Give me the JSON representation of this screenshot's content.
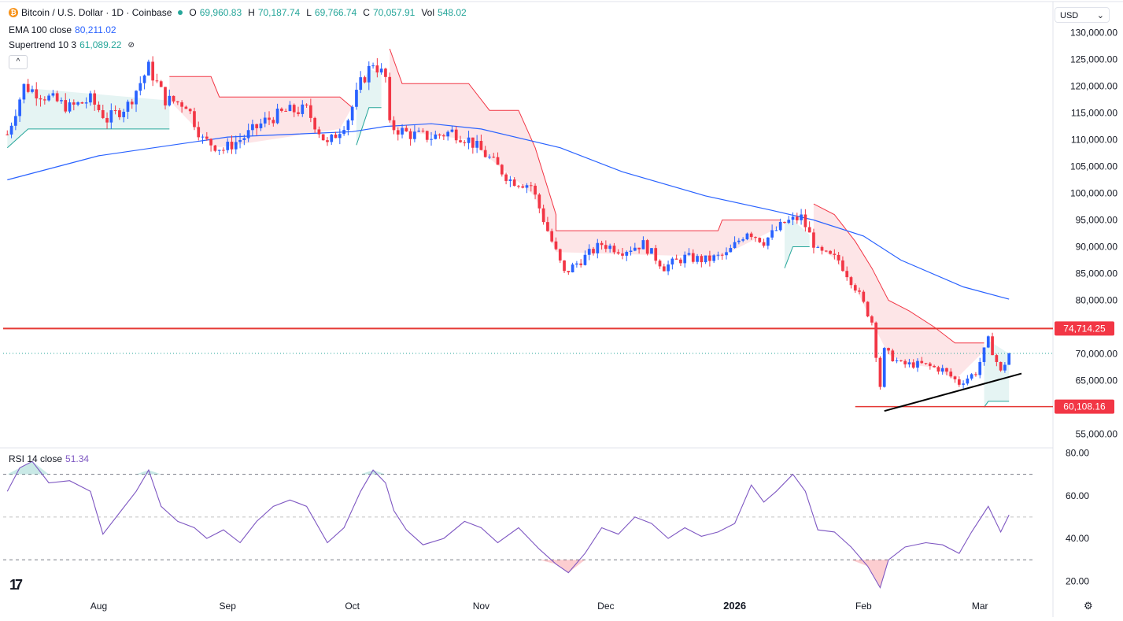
{
  "header": {
    "symbol": "Bitcoin / U.S. Dollar · 1D · Coinbase",
    "coin_glyph": "₿",
    "open_label": "O",
    "open": "69,960.83",
    "high_label": "H",
    "high": "70,187.74",
    "low_label": "L",
    "low": "69,766.74",
    "close_label": "C",
    "close": "70,057.91",
    "vol_label": "Vol",
    "vol": "548.02",
    "collapse_glyph": "^"
  },
  "indicators": {
    "ema_label": "EMA 100 close",
    "ema_value": "80,211.02",
    "supertrend_label": "Supertrend 10 3",
    "supertrend_value": "61,089.22",
    "eye_glyph": "⊘",
    "rsi_label": "RSI 14 close",
    "rsi_value": "51.34"
  },
  "currency": {
    "label": "USD",
    "caret": "⌄"
  },
  "logo_text": "17",
  "settings_icon": "gear-icon",
  "colors": {
    "up": "#2962ff",
    "down": "#f23645",
    "ema": "#2962ff",
    "supertrend_up": "#26a69a",
    "supertrend_down": "#f23645",
    "rsi": "#7e57c2",
    "hline": "#e53935",
    "trendline": "#000000"
  },
  "chart_data": [
    {
      "type": "candlestick",
      "title": "Bitcoin / U.S. Dollar · 1D · Coinbase",
      "ylim": [
        53000,
        132000
      ],
      "y_ticks": [
        "130,000.00",
        "125,000.00",
        "120,000.00",
        "115,000.00",
        "110,000.00",
        "105,000.00",
        "100,000.00",
        "95,000.00",
        "90,000.00",
        "85,000.00",
        "80,000.00",
        "70,000.00",
        "65,000.00",
        "55,000.00"
      ],
      "x_ticks": [
        {
          "label": "Aug",
          "date": "2025-08-01"
        },
        {
          "label": "Sep",
          "date": "2025-09-01"
        },
        {
          "label": "Oct",
          "date": "2025-10-01"
        },
        {
          "label": "Nov",
          "date": "2025-11-01"
        },
        {
          "label": "Dec",
          "date": "2025-12-01"
        },
        {
          "label": "2026",
          "date": "2026-01-01"
        },
        {
          "label": "Feb",
          "date": "2026-02-01"
        },
        {
          "label": "Mar",
          "date": "2026-03-01"
        }
      ],
      "date_range": [
        "2025-07-10",
        "2026-03-08"
      ],
      "last_price": 70057.91,
      "horizontal_levels": [
        {
          "value": 74714.25,
          "label": "74,714.25"
        },
        {
          "value": 60108.16,
          "label": "60,108.16"
        }
      ],
      "trendline": {
        "from": {
          "date": "2026-02-06",
          "value": 59300
        },
        "to": {
          "date": "2026-03-11",
          "value": 66300
        }
      },
      "close_path": [
        [
          "2025-07-10",
          111000
        ],
        [
          "2025-07-14",
          120000
        ],
        [
          "2025-07-20",
          117800
        ],
        [
          "2025-07-25",
          116000
        ],
        [
          "2025-07-30",
          117500
        ],
        [
          "2025-08-03",
          113800
        ],
        [
          "2025-08-08",
          116500
        ],
        [
          "2025-08-13",
          123500
        ],
        [
          "2025-08-17",
          117500
        ],
        [
          "2025-08-22",
          116700
        ],
        [
          "2025-08-26",
          110000
        ],
        [
          "2025-08-31",
          108200
        ],
        [
          "2025-09-05",
          110500
        ],
        [
          "2025-09-10",
          113500
        ],
        [
          "2025-09-15",
          115300
        ],
        [
          "2025-09-20",
          115600
        ],
        [
          "2025-09-25",
          109000
        ],
        [
          "2025-09-30",
          114000
        ],
        [
          "2025-10-03",
          120500
        ],
        [
          "2025-10-06",
          124500
        ],
        [
          "2025-10-09",
          121500
        ],
        [
          "2025-10-10",
          112500
        ],
        [
          "2025-10-15",
          111000
        ],
        [
          "2025-10-20",
          110500
        ],
        [
          "2025-10-25",
          111500
        ],
        [
          "2025-10-29",
          110000
        ],
        [
          "2025-11-03",
          106500
        ],
        [
          "2025-11-08",
          102500
        ],
        [
          "2025-11-13",
          101500
        ],
        [
          "2025-11-17",
          93000
        ],
        [
          "2025-11-21",
          85000
        ],
        [
          "2025-11-25",
          87500
        ],
        [
          "2025-11-30",
          90500
        ],
        [
          "2025-12-05",
          89300
        ],
        [
          "2025-12-10",
          90500
        ],
        [
          "2025-12-15",
          86200
        ],
        [
          "2025-12-20",
          88000
        ],
        [
          "2025-12-25",
          87500
        ],
        [
          "2025-12-30",
          88500
        ],
        [
          "2026-01-04",
          93000
        ],
        [
          "2026-01-08",
          91000
        ],
        [
          "2026-01-13",
          94500
        ],
        [
          "2026-01-17",
          95500
        ],
        [
          "2026-01-21",
          89000
        ],
        [
          "2026-01-26",
          87500
        ],
        [
          "2026-01-30",
          82500
        ],
        [
          "2026-02-03",
          76000
        ],
        [
          "2026-02-05",
          64000
        ],
        [
          "2026-02-06",
          70500
        ],
        [
          "2026-02-10",
          68000
        ],
        [
          "2026-02-15",
          68000
        ],
        [
          "2026-02-20",
          67000
        ],
        [
          "2026-02-24",
          64500
        ],
        [
          "2026-02-28",
          66500
        ],
        [
          "2026-03-03",
          72500
        ],
        [
          "2026-03-06",
          66500
        ],
        [
          "2026-03-08",
          70000
        ]
      ],
      "ema_100_path": [
        [
          "2025-07-10",
          102500
        ],
        [
          "2025-08-01",
          107000
        ],
        [
          "2025-09-01",
          110500
        ],
        [
          "2025-10-01",
          111500
        ],
        [
          "2025-10-09",
          112500
        ],
        [
          "2025-10-20",
          113000
        ],
        [
          "2025-11-01",
          112000
        ],
        [
          "2025-11-20",
          108500
        ],
        [
          "2025-12-05",
          104000
        ],
        [
          "2025-12-25",
          99500
        ],
        [
          "2026-01-10",
          96800
        ],
        [
          "2026-01-20",
          95000
        ],
        [
          "2026-02-01",
          92000
        ],
        [
          "2026-02-10",
          87500
        ],
        [
          "2026-02-25",
          82500
        ],
        [
          "2026-03-08",
          80200
        ]
      ],
      "supertrend_path": [
        {
          "trend": "up",
          "points": [
            [
              "2025-07-10",
              108500
            ],
            [
              "2025-07-15",
              112000
            ],
            [
              "2025-08-18",
              112000
            ]
          ]
        },
        {
          "trend": "down",
          "points": [
            [
              "2025-08-18",
              121800
            ],
            [
              "2025-08-28",
              121800
            ],
            [
              "2025-08-30",
              118000
            ],
            [
              "2025-09-28",
              118000
            ],
            [
              "2025-10-01",
              116000
            ]
          ]
        },
        {
          "trend": "up",
          "points": [
            [
              "2025-10-02",
              109000
            ],
            [
              "2025-10-05",
              116000
            ],
            [
              "2025-10-08",
              116000
            ]
          ]
        },
        {
          "trend": "down",
          "points": [
            [
              "2025-10-10",
              127000
            ],
            [
              "2025-10-13",
              120500
            ],
            [
              "2025-10-29",
              120500
            ],
            [
              "2025-11-03",
              115500
            ],
            [
              "2025-11-10",
              115500
            ],
            [
              "2025-11-14",
              108500
            ],
            [
              "2025-11-19",
              96000
            ],
            [
              "2025-11-19",
              93000
            ],
            [
              "2025-12-28",
              93000
            ],
            [
              "2025-12-29",
              95000
            ],
            [
              "2026-01-12",
              95000
            ]
          ]
        },
        {
          "trend": "up",
          "points": [
            [
              "2026-01-13",
              86000
            ],
            [
              "2026-01-15",
              90000
            ],
            [
              "2026-01-19",
              90000
            ]
          ]
        },
        {
          "trend": "down",
          "points": [
            [
              "2026-01-20",
              98000
            ],
            [
              "2026-01-25",
              96000
            ],
            [
              "2026-01-30",
              91000
            ],
            [
              "2026-02-03",
              86000
            ],
            [
              "2026-02-07",
              80000
            ],
            [
              "2026-02-12",
              78000
            ],
            [
              "2026-02-18",
              75000
            ],
            [
              "2026-02-23",
              72000
            ],
            [
              "2026-03-02",
              72000
            ]
          ]
        },
        {
          "trend": "up",
          "points": [
            [
              "2026-03-02",
              60000
            ],
            [
              "2026-03-03",
              61100
            ],
            [
              "2026-03-08",
              61100
            ]
          ]
        }
      ]
    },
    {
      "type": "line",
      "title": "RSI 14 close",
      "ylim": [
        15,
        82
      ],
      "y_ticks": [
        "80.00",
        "60.00",
        "40.00",
        "20.00"
      ],
      "levels": [
        70,
        50,
        30
      ],
      "series": [
        {
          "name": "RSI 14 close",
          "points": [
            [
              "2025-07-10",
              62
            ],
            [
              "2025-07-13",
              73
            ],
            [
              "2025-07-16",
              76
            ],
            [
              "2025-07-20",
              66
            ],
            [
              "2025-07-25",
              67
            ],
            [
              "2025-07-30",
              62
            ],
            [
              "2025-08-02",
              42
            ],
            [
              "2025-08-06",
              52
            ],
            [
              "2025-08-10",
              62
            ],
            [
              "2025-08-13",
              72
            ],
            [
              "2025-08-16",
              55
            ],
            [
              "2025-08-20",
              48
            ],
            [
              "2025-08-24",
              45
            ],
            [
              "2025-08-27",
              40
            ],
            [
              "2025-08-31",
              44
            ],
            [
              "2025-09-04",
              38
            ],
            [
              "2025-09-08",
              48
            ],
            [
              "2025-09-12",
              55
            ],
            [
              "2025-09-16",
              58
            ],
            [
              "2025-09-20",
              55
            ],
            [
              "2025-09-25",
              38
            ],
            [
              "2025-09-29",
              45
            ],
            [
              "2025-10-03",
              62
            ],
            [
              "2025-10-06",
              72
            ],
            [
              "2025-10-09",
              66
            ],
            [
              "2025-10-11",
              53
            ],
            [
              "2025-10-14",
              44
            ],
            [
              "2025-10-18",
              37
            ],
            [
              "2025-10-23",
              40
            ],
            [
              "2025-10-28",
              48
            ],
            [
              "2025-11-01",
              45
            ],
            [
              "2025-11-05",
              38
            ],
            [
              "2025-11-10",
              45
            ],
            [
              "2025-11-15",
              35
            ],
            [
              "2025-11-19",
              28
            ],
            [
              "2025-11-22",
              24
            ],
            [
              "2025-11-26",
              33
            ],
            [
              "2025-11-30",
              45
            ],
            [
              "2025-12-04",
              42
            ],
            [
              "2025-12-08",
              50
            ],
            [
              "2025-12-12",
              47
            ],
            [
              "2025-12-16",
              40
            ],
            [
              "2025-12-20",
              45
            ],
            [
              "2025-12-24",
              41
            ],
            [
              "2025-12-28",
              43
            ],
            [
              "2026-01-01",
              47
            ],
            [
              "2026-01-05",
              65
            ],
            [
              "2026-01-08",
              57
            ],
            [
              "2026-01-11",
              62
            ],
            [
              "2026-01-15",
              70
            ],
            [
              "2026-01-18",
              62
            ],
            [
              "2026-01-21",
              44
            ],
            [
              "2026-01-25",
              43
            ],
            [
              "2026-01-29",
              36
            ],
            [
              "2026-02-02",
              27
            ],
            [
              "2026-02-05",
              17
            ],
            [
              "2026-02-07",
              30
            ],
            [
              "2026-02-11",
              36
            ],
            [
              "2026-02-16",
              38
            ],
            [
              "2026-02-20",
              37
            ],
            [
              "2026-02-24",
              33
            ],
            [
              "2026-02-27",
              43
            ],
            [
              "2026-03-03",
              55
            ],
            [
              "2026-03-06",
              43
            ],
            [
              "2026-03-08",
              51
            ]
          ]
        }
      ]
    }
  ]
}
